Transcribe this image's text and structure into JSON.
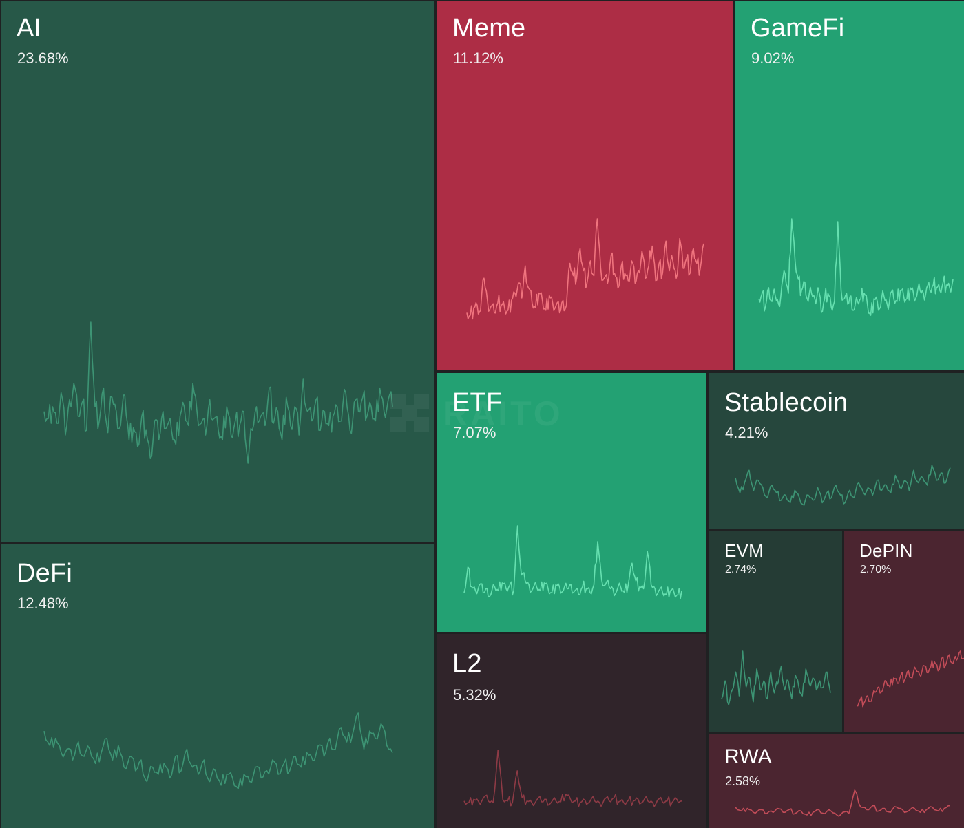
{
  "chart_data": {
    "type": "treemap",
    "title": "",
    "watermark": "RAITO",
    "sectors": [
      {
        "name": "AI",
        "share": "23.68%",
        "value": 23.68,
        "trend": "up",
        "color": "#275848",
        "line_color": "#3d9474",
        "spark": [
          50,
          47,
          52,
          45,
          58,
          40,
          55,
          62,
          48,
          54,
          42,
          88,
          52,
          46,
          60,
          41,
          56,
          50,
          44,
          57,
          38,
          43,
          35,
          48,
          42,
          30,
          46,
          38,
          50,
          44,
          42,
          36,
          48,
          52,
          44,
          62,
          50,
          45,
          40,
          55,
          47,
          42,
          38,
          52,
          40,
          46,
          44,
          50,
          28,
          42,
          52,
          48,
          44,
          60,
          45,
          50,
          38,
          56,
          44,
          52,
          40,
          64,
          50,
          46,
          55,
          42,
          50,
          44,
          48,
          52,
          46,
          58,
          42,
          54,
          50,
          56,
          48,
          52,
          46,
          60,
          50,
          55,
          52
        ]
      },
      {
        "name": "Meme",
        "share": "11.12%",
        "value": 11.12,
        "trend": "down",
        "color": "#ad2d45",
        "line_color": "#f0747e",
        "spark": [
          20,
          18,
          24,
          26,
          22,
          48,
          30,
          25,
          20,
          28,
          26,
          24,
          22,
          30,
          36,
          44,
          32,
          58,
          40,
          28,
          24,
          36,
          30,
          22,
          34,
          28,
          26,
          20,
          30,
          26,
          60,
          50,
          48,
          72,
          54,
          44,
          62,
          50,
          96,
          56,
          48,
          44,
          66,
          52,
          40,
          58,
          52,
          46,
          62,
          44,
          54,
          70,
          48,
          58,
          74,
          46,
          60,
          52,
          78,
          54,
          62,
          48,
          80,
          56,
          64,
          52,
          72,
          60,
          56,
          76
        ]
      },
      {
        "name": "GameFi",
        "share": "9.02%",
        "value": 9.02,
        "trend": "up",
        "color": "#23a173",
        "line_color": "#66e0b0",
        "spark": [
          30,
          34,
          24,
          38,
          28,
          32,
          26,
          40,
          48,
          34,
          88,
          58,
          44,
          36,
          42,
          28,
          34,
          30,
          38,
          20,
          30,
          34,
          24,
          28,
          86,
          36,
          30,
          26,
          32,
          22,
          28,
          30,
          34,
          26,
          18,
          30,
          28,
          24,
          32,
          26,
          34,
          30,
          28,
          36,
          32,
          30,
          38,
          34,
          32,
          36,
          34,
          38,
          36,
          40,
          38,
          36,
          42,
          40,
          38,
          44
        ]
      },
      {
        "name": "DeFi",
        "share": "12.48%",
        "value": 12.48,
        "trend": "up",
        "color": "#275848",
        "line_color": "#3d9474",
        "spark": [
          60,
          52,
          56,
          48,
          50,
          44,
          54,
          46,
          50,
          42,
          48,
          56,
          44,
          52,
          40,
          46,
          38,
          44,
          32,
          40,
          36,
          42,
          34,
          46,
          38,
          50,
          40,
          36,
          44,
          32,
          38,
          30,
          36,
          34,
          28,
          36,
          32,
          40,
          34,
          38,
          44,
          36,
          42,
          38,
          46,
          40,
          48,
          44,
          52,
          46,
          56,
          50,
          62,
          54,
          58,
          70,
          50,
          60,
          56,
          64,
          52,
          48
        ]
      },
      {
        "name": "ETF",
        "share": "7.07%",
        "value": 7.07,
        "trend": "up",
        "color": "#23a173",
        "line_color": "#66e0b0",
        "spark": [
          22,
          48,
          28,
          24,
          30,
          22,
          26,
          20,
          28,
          24,
          32,
          26,
          30,
          24,
          90,
          40,
          34,
          30,
          26,
          28,
          24,
          32,
          26,
          22,
          30,
          28,
          24,
          26,
          30,
          24,
          20,
          28,
          26,
          22,
          30,
          74,
          36,
          30,
          28,
          26,
          24,
          28,
          22,
          30,
          52,
          34,
          28,
          26,
          64,
          30,
          26,
          24,
          22,
          20,
          24,
          22,
          20,
          24
        ]
      },
      {
        "name": "Stablecoin",
        "share": "4.21%",
        "value": 4.21,
        "trend": "up",
        "color": "#26473d",
        "line_color": "#3d9474",
        "spark": [
          50,
          38,
          46,
          56,
          40,
          48,
          42,
          34,
          44,
          38,
          32,
          36,
          30,
          40,
          34,
          28,
          36,
          32,
          42,
          30,
          38,
          34,
          44,
          36,
          30,
          40,
          34,
          46,
          38,
          42,
          36,
          48,
          40,
          44,
          38,
          52,
          42,
          48,
          40,
          56,
          46,
          50,
          44,
          60,
          48,
          54,
          46,
          58
        ]
      },
      {
        "name": "L2",
        "share": "5.32%",
        "value": 5.32,
        "trend": "down",
        "color": "#30242a",
        "line_color": "#8d3a45",
        "spark": [
          14,
          12,
          16,
          13,
          18,
          14,
          12,
          78,
          16,
          14,
          12,
          52,
          18,
          14,
          12,
          15,
          13,
          16,
          12,
          14,
          13,
          22,
          16,
          14,
          12,
          15,
          13,
          14,
          12,
          16,
          14,
          18,
          13,
          12,
          15,
          14,
          16,
          13,
          14,
          12,
          15,
          13,
          14,
          12,
          16,
          14
        ]
      },
      {
        "name": "EVM",
        "share": "2.74%",
        "value": 2.74,
        "trend": "up",
        "color": "#253c35",
        "line_color": "#3d9474",
        "spark": [
          38,
          50,
          34,
          44,
          56,
          40,
          70,
          46,
          52,
          36,
          58,
          44,
          50,
          38,
          56,
          42,
          48,
          60,
          44,
          50,
          38,
          54,
          46,
          40,
          58,
          48,
          52,
          44,
          50,
          46,
          56,
          42
        ]
      },
      {
        "name": "DePIN",
        "share": "2.70%",
        "value": 2.7,
        "trend": "down",
        "color": "#4b2530",
        "line_color": "#c24c58",
        "spark": [
          10,
          16,
          12,
          20,
          14,
          24,
          30,
          26,
          36,
          30,
          40,
          34,
          44,
          38,
          48,
          40,
          50,
          44,
          54,
          46,
          52,
          58,
          48,
          62,
          54,
          66,
          56,
          60,
          70,
          62
        ]
      },
      {
        "name": "RWA",
        "share": "2.58%",
        "value": 2.58,
        "trend": "down",
        "color": "#4b2530",
        "line_color": "#c24c58",
        "spark": [
          24,
          18,
          22,
          16,
          20,
          14,
          18,
          22,
          16,
          20,
          14,
          18,
          12,
          16,
          20,
          14,
          18,
          12,
          16,
          14,
          50,
          24,
          20,
          26,
          18,
          22,
          16,
          24,
          20,
          18,
          22,
          16,
          20,
          24,
          18,
          22,
          26
        ]
      }
    ]
  }
}
